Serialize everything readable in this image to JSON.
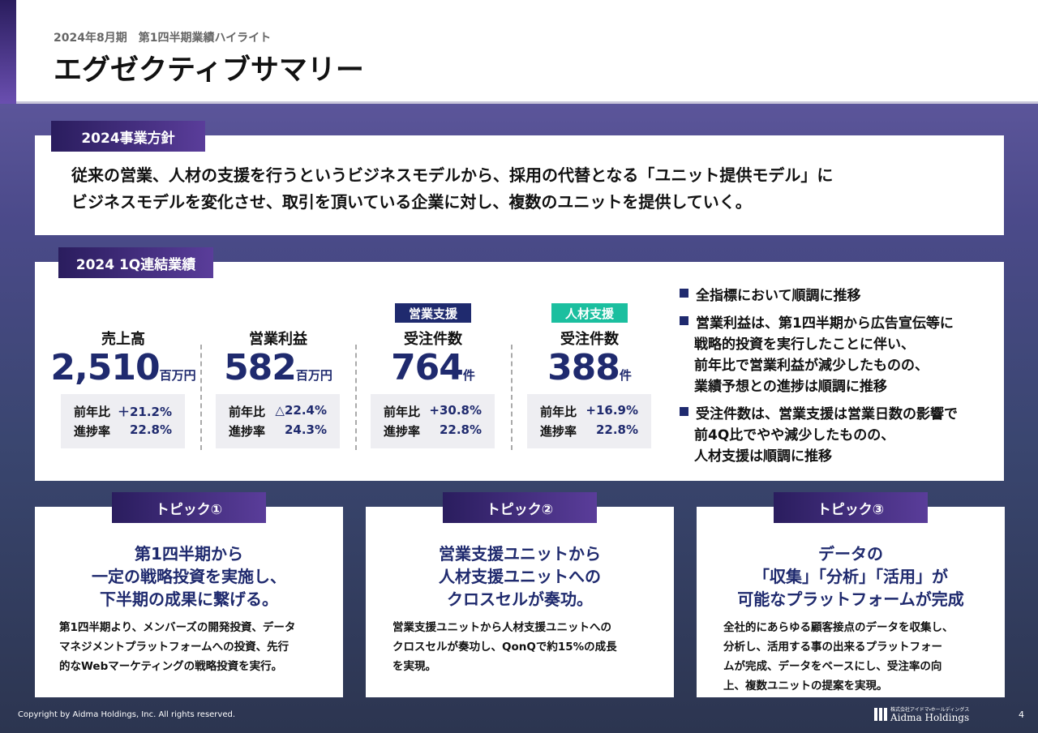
{
  "header": {
    "subtitle": "2024年8月期　第1四半期業績ハイライト",
    "title": "エグゼクティブサマリー"
  },
  "policy": {
    "label": "2024事業方針",
    "lines": [
      "従来の営業、人材の支援を行うというビジネスモデルから、採用の代替となる「ユニット提供モデル」に",
      "ビジネスモデルを変化させ、取引を頂いている企業に対し、複数のユニットを提供していく。"
    ]
  },
  "results": {
    "label": "2024 1Q連結業績",
    "kpis": [
      {
        "name": "売上高",
        "value": "2,510",
        "unit": "百万円",
        "stats": [
          [
            "前年比",
            "＋21.2%"
          ],
          [
            "進捗率",
            "22.8%"
          ]
        ]
      },
      {
        "name": "営業利益",
        "value": "582",
        "unit": "百万円",
        "stats": [
          [
            "前年比",
            "△22.4%"
          ],
          [
            "進捗率",
            "24.3%"
          ]
        ]
      },
      {
        "tag": "営業支援",
        "name": "受注件数",
        "value": "764",
        "unit": "件",
        "stats": [
          [
            "前年比",
            "+30.8%"
          ],
          [
            "進捗率",
            "22.8%"
          ]
        ]
      },
      {
        "tag": "人材支援",
        "name": "受注件数",
        "value": "388",
        "unit": "件",
        "stats": [
          [
            "前年比",
            "+16.9%"
          ],
          [
            "進捗率",
            "22.8%"
          ]
        ]
      }
    ],
    "bullets": [
      [
        "全指標において順調に推移"
      ],
      [
        "営業利益は、第1四半期から広告宣伝等に",
        "戦略的投資を実行したことに伴い、",
        "前年比で営業利益が減少したものの、",
        "業績予想との進捗は順調に推移"
      ],
      [
        "受注件数は、営業支援は営業日数の影響で",
        "前4Q比でやや減少したものの、",
        "人材支援は順調に推移"
      ]
    ]
  },
  "topics": [
    {
      "label": "トピック①",
      "headline": [
        "第1四半期から",
        "一定の戦略投資を実施し、",
        "下半期の成果に繋げる。"
      ],
      "body": [
        "第1四半期より、メンバーズの開発投資、データ",
        "マネジメントプラットフォームへの投資、先行",
        "的なWebマーケティングの戦略投資を実行。"
      ]
    },
    {
      "label": "トピック②",
      "headline": [
        "営業支援ユニットから",
        "人材支援ユニットへの",
        "クロスセルが奏功。"
      ],
      "body": [
        "営業支援ユニットから人材支援ユニットへの",
        "クロスセルが奏功し、QonQで約15%の成長",
        "を実現。"
      ]
    },
    {
      "label": "トピック③",
      "headline": [
        "データの",
        "「収集」「分析」「活用」が",
        "可能なプラットフォームが完成"
      ],
      "body": [
        "全社的にあらゆる顧客接点のデータを収集し、",
        "分析し、活用する事の出来るプラットフォー",
        "ムが完成、データをベースにし、受注率の向",
        "上、複数ユニットの提案を実現。"
      ]
    }
  ],
  "footer": {
    "copyright": "Copyright by Aidma Holdings, Inc. All rights reserved.",
    "company_jp": "株式会社アイドマ・ホールディングス",
    "company": "Aidma Holdings",
    "page": "4"
  }
}
